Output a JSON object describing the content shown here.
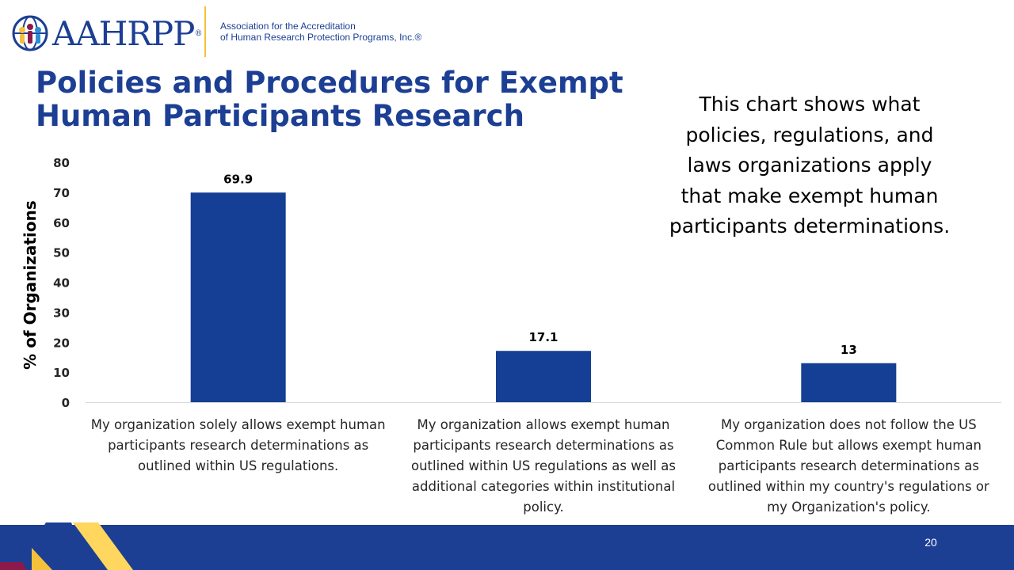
{
  "header": {
    "logo_text": "AAHRPP",
    "org_name_line1": "Association for the Accreditation",
    "org_name_line2": "of Human Research Protection Programs, Inc.®"
  },
  "title": {
    "line1": "Policies and Procedures for Exempt",
    "line2": "Human Participants Research"
  },
  "note": "This chart shows what policies, regulations, and laws organizations apply that make exempt human participants determinations.",
  "footer": {
    "page_number": "20"
  },
  "colors": {
    "brand_blue": "#1c3f94",
    "bar": "#143f94",
    "accent_yellow": "#f5c13b",
    "accent_gold": "#ffd75e",
    "accent_maroon": "#8b1a4a",
    "gridline": "#d9d9d9"
  },
  "chart_data": {
    "type": "bar",
    "categories": [
      "My organization solely allows exempt human participants research determinations as outlined within US regulations.",
      "My organization allows exempt human participants research determinations as outlined within US regulations as well as additional categories within institutional policy.",
      "My organization does not follow the US Common Rule but allows exempt human participants research determinations as outlined within my country's regulations or my Organization's policy."
    ],
    "values": [
      69.9,
      17.1,
      13
    ],
    "value_labels": [
      "69.9",
      "17.1",
      "13"
    ],
    "ylabel": "% of Organizations",
    "xlabel": "",
    "ylim": [
      0,
      80
    ],
    "yticks": [
      0,
      10,
      20,
      30,
      40,
      50,
      60,
      70,
      80
    ],
    "grid": false,
    "legend": "none"
  }
}
